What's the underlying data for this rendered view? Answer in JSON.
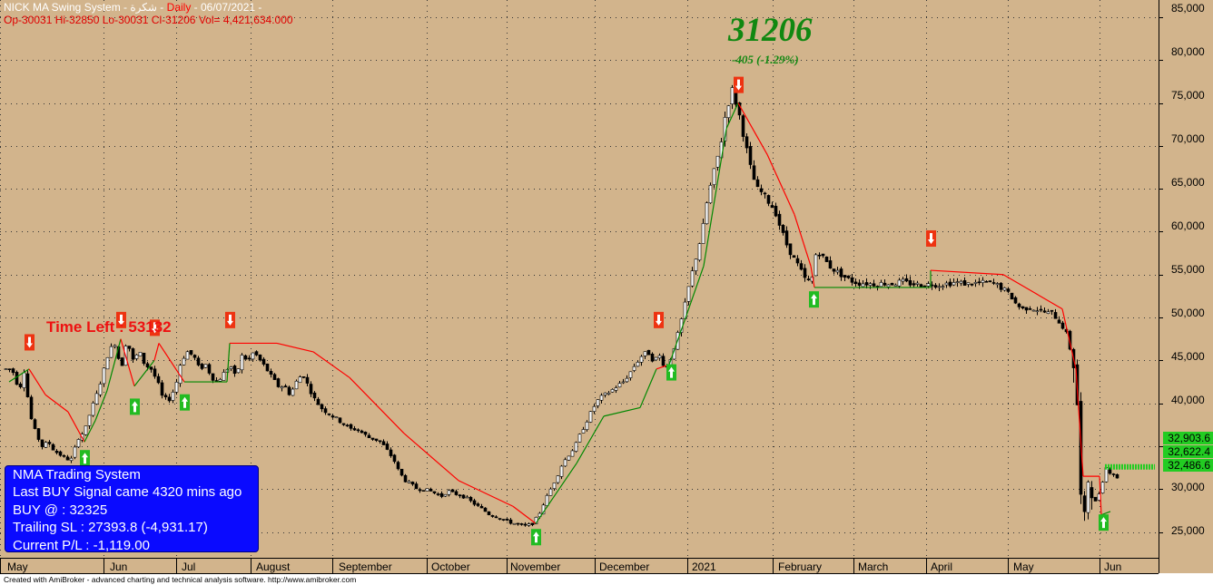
{
  "header": {
    "title_part": "NICK MA Swing System - شكرة -",
    "period": "Daily",
    "date": "- 06/07/2021 -",
    "ohlc_line": "Op-30031  Hi-32850  Lo-30031  Cl-31206  Vol= 4,421,634.000"
  },
  "last_price": "31206",
  "change_text": "-405  (-1.29%)",
  "time_left": "Time Left : 53132",
  "info_box": {
    "line1": "NMA Trading System",
    "line2": "Last BUY Signal came 4320 mins ago",
    "line3": "BUY @  : 32325",
    "line4": "Trailing SL : 27393.8 (-4,931.17)",
    "line5": "Current P/L : -1,119.00"
  },
  "footer": "Created with AmiBroker - advanced charting and technical analysis software. http://www.amibroker.com",
  "price_tags": [
    "32,903.6",
    "32,622.4",
    "32,486.6"
  ],
  "colors": {
    "background": "#d2b48c",
    "bull_candle": "#ffffff",
    "bear_candle": "#000000",
    "trail_stop_down": "#ff0000",
    "trail_stop_up": "#008800",
    "buy_arrow": "#22bb22",
    "sell_arrow": "#ee3311",
    "info_box": "#0a0aff"
  },
  "chart_data": {
    "type": "candlestick",
    "title": "NICK MA Swing System",
    "y_axis": {
      "ticks": [
        25000,
        30000,
        35000,
        40000,
        45000,
        50000,
        55000,
        60000,
        65000,
        70000,
        75000,
        80000,
        85000
      ],
      "tick_labels": [
        "25,000",
        "30,000",
        "35,000",
        "40,000",
        "45,000",
        "50,000",
        "55,000",
        "60,000",
        "65,000",
        "70,000",
        "75,000",
        "80,000",
        "85,000"
      ],
      "range": [
        22000,
        87000
      ],
      "grid": true
    },
    "x_axis": {
      "month_labels": [
        "May",
        "Jun",
        "Jul",
        "August",
        "September",
        "October",
        "November",
        "December",
        "2021",
        "February",
        "March",
        "April",
        "May",
        "Jun"
      ]
    },
    "close_series": [
      {
        "t": 0,
        "v": 44000
      },
      {
        "t": 7,
        "v": 44000
      },
      {
        "t": 11,
        "v": 42500
      },
      {
        "t": 17,
        "v": 42000
      },
      {
        "t": 20,
        "v": 43800
      },
      {
        "t": 27,
        "v": 38500
      },
      {
        "t": 33,
        "v": 36500
      },
      {
        "t": 40,
        "v": 35000
      },
      {
        "t": 47,
        "v": 35500
      },
      {
        "t": 53,
        "v": 34500
      },
      {
        "t": 60,
        "v": 34000
      },
      {
        "t": 66,
        "v": 33500
      },
      {
        "t": 72,
        "v": 33500
      },
      {
        "t": 80,
        "v": 36000
      },
      {
        "t": 87,
        "v": 36800
      },
      {
        "t": 93,
        "v": 39000
      },
      {
        "t": 100,
        "v": 41000
      },
      {
        "t": 107,
        "v": 43500
      },
      {
        "t": 113,
        "v": 46000
      },
      {
        "t": 120,
        "v": 47000
      },
      {
        "t": 127,
        "v": 44000
      },
      {
        "t": 133,
        "v": 47500
      },
      {
        "t": 140,
        "v": 45000
      },
      {
        "t": 147,
        "v": 46000
      },
      {
        "t": 153,
        "v": 44500
      },
      {
        "t": 160,
        "v": 44000
      },
      {
        "t": 167,
        "v": 42500
      },
      {
        "t": 173,
        "v": 40500
      },
      {
        "t": 180,
        "v": 40500
      },
      {
        "t": 187,
        "v": 42000
      },
      {
        "t": 193,
        "v": 45000
      },
      {
        "t": 200,
        "v": 46000
      },
      {
        "t": 207,
        "v": 45500
      },
      {
        "t": 213,
        "v": 44000
      },
      {
        "t": 220,
        "v": 44500
      },
      {
        "t": 227,
        "v": 43000
      },
      {
        "t": 233,
        "v": 42500
      },
      {
        "t": 240,
        "v": 43500
      },
      {
        "t": 247,
        "v": 44500
      },
      {
        "t": 253,
        "v": 43000
      },
      {
        "t": 260,
        "v": 45500
      },
      {
        "t": 267,
        "v": 45000
      },
      {
        "t": 273,
        "v": 46000
      },
      {
        "t": 280,
        "v": 45000
      },
      {
        "t": 287,
        "v": 44000
      },
      {
        "t": 293,
        "v": 43000
      },
      {
        "t": 300,
        "v": 42000
      },
      {
        "t": 307,
        "v": 42000
      },
      {
        "t": 313,
        "v": 41000
      },
      {
        "t": 320,
        "v": 42500
      },
      {
        "t": 327,
        "v": 43500
      },
      {
        "t": 333,
        "v": 42000
      },
      {
        "t": 340,
        "v": 40500
      },
      {
        "t": 347,
        "v": 39500
      },
      {
        "t": 353,
        "v": 39000
      },
      {
        "t": 360,
        "v": 38500
      },
      {
        "t": 367,
        "v": 38000
      },
      {
        "t": 373,
        "v": 37500
      },
      {
        "t": 380,
        "v": 37000
      },
      {
        "t": 387,
        "v": 37000
      },
      {
        "t": 393,
        "v": 36500
      },
      {
        "t": 400,
        "v": 36000
      },
      {
        "t": 407,
        "v": 35800
      },
      {
        "t": 413,
        "v": 35500
      },
      {
        "t": 420,
        "v": 34500
      },
      {
        "t": 427,
        "v": 33500
      },
      {
        "t": 433,
        "v": 32000
      },
      {
        "t": 440,
        "v": 31000
      },
      {
        "t": 447,
        "v": 30500
      },
      {
        "t": 453,
        "v": 30000
      },
      {
        "t": 460,
        "v": 30000
      },
      {
        "t": 467,
        "v": 29800
      },
      {
        "t": 473,
        "v": 29500
      },
      {
        "t": 480,
        "v": 29200
      },
      {
        "t": 487,
        "v": 29800
      },
      {
        "t": 493,
        "v": 29500
      },
      {
        "t": 500,
        "v": 29300
      },
      {
        "t": 507,
        "v": 29000
      },
      {
        "t": 513,
        "v": 28500
      },
      {
        "t": 520,
        "v": 28000
      },
      {
        "t": 527,
        "v": 27500
      },
      {
        "t": 533,
        "v": 27000
      },
      {
        "t": 540,
        "v": 26800
      },
      {
        "t": 547,
        "v": 26500
      },
      {
        "t": 553,
        "v": 26200
      },
      {
        "t": 560,
        "v": 26000
      },
      {
        "t": 567,
        "v": 25800
      },
      {
        "t": 573,
        "v": 25700
      },
      {
        "t": 580,
        "v": 26000
      },
      {
        "t": 587,
        "v": 27000
      },
      {
        "t": 593,
        "v": 28500
      },
      {
        "t": 600,
        "v": 30000
      },
      {
        "t": 607,
        "v": 31500
      },
      {
        "t": 613,
        "v": 33000
      },
      {
        "t": 620,
        "v": 34000
      },
      {
        "t": 627,
        "v": 35000
      },
      {
        "t": 633,
        "v": 36500
      },
      {
        "t": 640,
        "v": 38000
      },
      {
        "t": 647,
        "v": 39500
      },
      {
        "t": 653,
        "v": 40500
      },
      {
        "t": 660,
        "v": 41000
      },
      {
        "t": 667,
        "v": 41500
      },
      {
        "t": 673,
        "v": 42000
      },
      {
        "t": 680,
        "v": 42500
      },
      {
        "t": 687,
        "v": 43500
      },
      {
        "t": 693,
        "v": 44500
      },
      {
        "t": 700,
        "v": 45500
      },
      {
        "t": 707,
        "v": 46000
      },
      {
        "t": 713,
        "v": 45000
      },
      {
        "t": 720,
        "v": 45500
      },
      {
        "t": 727,
        "v": 44000
      },
      {
        "t": 733,
        "v": 45500
      },
      {
        "t": 740,
        "v": 48000
      },
      {
        "t": 747,
        "v": 51000
      },
      {
        "t": 753,
        "v": 54000
      },
      {
        "t": 760,
        "v": 57000
      },
      {
        "t": 767,
        "v": 60000
      },
      {
        "t": 773,
        "v": 64000
      },
      {
        "t": 780,
        "v": 67000
      },
      {
        "t": 787,
        "v": 70000
      },
      {
        "t": 793,
        "v": 74000
      },
      {
        "t": 800,
        "v": 76500
      },
      {
        "t": 807,
        "v": 74000
      },
      {
        "t": 813,
        "v": 71000
      },
      {
        "t": 820,
        "v": 67500
      },
      {
        "t": 827,
        "v": 65000
      },
      {
        "t": 833,
        "v": 64500
      },
      {
        "t": 840,
        "v": 63500
      },
      {
        "t": 847,
        "v": 62500
      },
      {
        "t": 853,
        "v": 60500
      },
      {
        "t": 860,
        "v": 58500
      },
      {
        "t": 867,
        "v": 57000
      },
      {
        "t": 873,
        "v": 56000
      },
      {
        "t": 880,
        "v": 54500
      },
      {
        "t": 887,
        "v": 54000
      },
      {
        "t": 893,
        "v": 58000
      },
      {
        "t": 900,
        "v": 57000
      },
      {
        "t": 907,
        "v": 56000
      },
      {
        "t": 913,
        "v": 55500
      },
      {
        "t": 920,
        "v": 55000
      },
      {
        "t": 927,
        "v": 54500
      },
      {
        "t": 933,
        "v": 54200
      },
      {
        "t": 940,
        "v": 54000
      },
      {
        "t": 947,
        "v": 54000
      },
      {
        "t": 953,
        "v": 53900
      },
      {
        "t": 960,
        "v": 53900
      },
      {
        "t": 967,
        "v": 54000
      },
      {
        "t": 973,
        "v": 53900
      },
      {
        "t": 980,
        "v": 54000
      },
      {
        "t": 987,
        "v": 54200
      },
      {
        "t": 993,
        "v": 54000
      },
      {
        "t": 1000,
        "v": 53900
      },
      {
        "t": 1007,
        "v": 53800
      },
      {
        "t": 1013,
        "v": 53800
      },
      {
        "t": 1020,
        "v": 53900
      },
      {
        "t": 1027,
        "v": 53800
      },
      {
        "t": 1033,
        "v": 53900
      },
      {
        "t": 1040,
        "v": 54000
      },
      {
        "t": 1047,
        "v": 54100
      },
      {
        "t": 1053,
        "v": 54000
      },
      {
        "t": 1060,
        "v": 53900
      },
      {
        "t": 1067,
        "v": 54000
      },
      {
        "t": 1073,
        "v": 54000
      },
      {
        "t": 1080,
        "v": 54100
      },
      {
        "t": 1087,
        "v": 54000
      },
      {
        "t": 1093,
        "v": 53700
      },
      {
        "t": 1100,
        "v": 53200
      },
      {
        "t": 1107,
        "v": 52500
      },
      {
        "t": 1113,
        "v": 51500
      },
      {
        "t": 1120,
        "v": 51000
      },
      {
        "t": 1127,
        "v": 51200
      },
      {
        "t": 1133,
        "v": 51000
      },
      {
        "t": 1140,
        "v": 50800
      },
      {
        "t": 1147,
        "v": 50500
      },
      {
        "t": 1153,
        "v": 50500
      },
      {
        "t": 1160,
        "v": 49500
      },
      {
        "t": 1167,
        "v": 48500
      },
      {
        "t": 1173,
        "v": 46000
      },
      {
        "t": 1178,
        "v": 44000
      },
      {
        "t": 1181,
        "v": 38000
      },
      {
        "t": 1184,
        "v": 29000
      },
      {
        "t": 1187,
        "v": 26000
      },
      {
        "t": 1190,
        "v": 27500
      },
      {
        "t": 1193,
        "v": 33000
      },
      {
        "t": 1196,
        "v": 30000
      },
      {
        "t": 1200,
        "v": 28500
      },
      {
        "t": 1204,
        "v": 29500
      },
      {
        "t": 1208,
        "v": 31000
      },
      {
        "t": 1212,
        "v": 32500
      },
      {
        "t": 1216,
        "v": 32000
      },
      {
        "t": 1220,
        "v": 31800
      },
      {
        "t": 1224,
        "v": 31206
      }
    ],
    "trailing_stop": [
      {
        "t": 5,
        "v": 42500,
        "c": "up"
      },
      {
        "t": 27,
        "v": 44000,
        "c": "down"
      },
      {
        "t": 45,
        "v": 41000,
        "c": "down"
      },
      {
        "t": 70,
        "v": 39000,
        "c": "down"
      },
      {
        "t": 88,
        "v": 35500,
        "c": "up"
      },
      {
        "t": 100,
        "v": 38000,
        "c": "up"
      },
      {
        "t": 113,
        "v": 41500,
        "c": "up"
      },
      {
        "t": 128,
        "v": 47500,
        "c": "down"
      },
      {
        "t": 143,
        "v": 42000,
        "c": "up"
      },
      {
        "t": 165,
        "v": 45000,
        "c": "down"
      },
      {
        "t": 170,
        "v": 47000,
        "c": "down"
      },
      {
        "t": 198,
        "v": 42500,
        "c": "up"
      },
      {
        "t": 245,
        "v": 42500,
        "c": "up"
      },
      {
        "t": 248,
        "v": 47000,
        "c": "down"
      },
      {
        "t": 300,
        "v": 47000,
        "c": "down"
      },
      {
        "t": 340,
        "v": 46000,
        "c": "down"
      },
      {
        "t": 380,
        "v": 43000,
        "c": "down"
      },
      {
        "t": 440,
        "v": 36500,
        "c": "down"
      },
      {
        "t": 500,
        "v": 31000,
        "c": "down"
      },
      {
        "t": 560,
        "v": 28000,
        "c": "down"
      },
      {
        "t": 585,
        "v": 26000,
        "c": "up"
      },
      {
        "t": 630,
        "v": 33000,
        "c": "up"
      },
      {
        "t": 660,
        "v": 38500,
        "c": "up"
      },
      {
        "t": 700,
        "v": 39500,
        "c": "up"
      },
      {
        "t": 718,
        "v": 44000,
        "c": "down"
      },
      {
        "t": 732,
        "v": 44500,
        "c": "up"
      },
      {
        "t": 770,
        "v": 56000,
        "c": "up"
      },
      {
        "t": 795,
        "v": 72000,
        "c": "up"
      },
      {
        "t": 808,
        "v": 75000,
        "c": "down"
      },
      {
        "t": 840,
        "v": 69000,
        "c": "down"
      },
      {
        "t": 870,
        "v": 62000,
        "c": "down"
      },
      {
        "t": 888,
        "v": 56000,
        "c": "down"
      },
      {
        "t": 892,
        "v": 53500,
        "c": "up"
      },
      {
        "t": 1020,
        "v": 53500,
        "c": "up"
      },
      {
        "t": 1020,
        "v": 55500,
        "c": "down"
      },
      {
        "t": 1100,
        "v": 55000,
        "c": "down"
      },
      {
        "t": 1165,
        "v": 51000,
        "c": "down"
      },
      {
        "t": 1180,
        "v": 44000,
        "c": "down"
      },
      {
        "t": 1188,
        "v": 31500,
        "c": "down"
      },
      {
        "t": 1206,
        "v": 31500,
        "c": "down"
      },
      {
        "t": 1208,
        "v": 27000,
        "c": "up"
      },
      {
        "t": 1218,
        "v": 27400,
        "c": "up"
      }
    ],
    "buy_signals": [
      {
        "t": 88,
        "v": 33500
      },
      {
        "t": 143,
        "v": 39500
      },
      {
        "t": 198,
        "v": 40000
      },
      {
        "t": 585,
        "v": 24300
      },
      {
        "t": 734,
        "v": 43500
      },
      {
        "t": 891,
        "v": 52000
      },
      {
        "t": 1210,
        "v": 26000
      }
    ],
    "sell_signals": [
      {
        "t": 27,
        "v": 47000
      },
      {
        "t": 128,
        "v": 49600
      },
      {
        "t": 165,
        "v": 48700
      },
      {
        "t": 248,
        "v": 49600
      },
      {
        "t": 720,
        "v": 49600
      },
      {
        "t": 808,
        "v": 77000
      },
      {
        "t": 1020,
        "v": 59100
      }
    ]
  }
}
